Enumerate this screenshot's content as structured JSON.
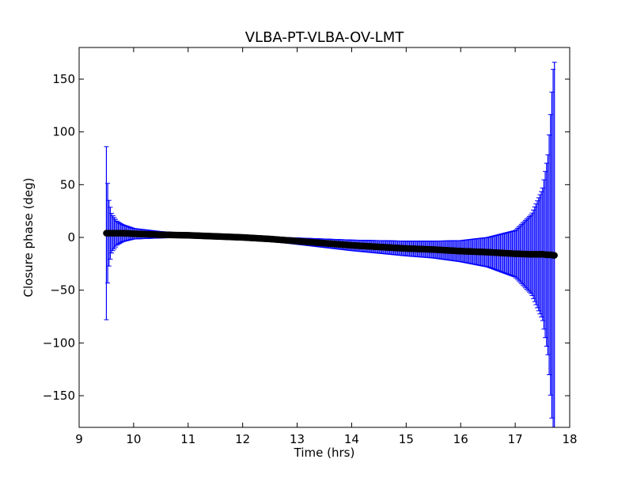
{
  "chart_data": {
    "type": "scatter",
    "title": "VLBA-PT-VLBA-OV-LMT",
    "xlabel": "Time (hrs)",
    "ylabel": "Closure phase (deg)",
    "xlim": [
      9,
      18
    ],
    "ylim": [
      -180,
      180
    ],
    "xticks": [
      9,
      10,
      11,
      12,
      13,
      14,
      15,
      16,
      17,
      18
    ],
    "xtick_labels": [
      "9",
      "10",
      "11",
      "12",
      "13",
      "14",
      "15",
      "16",
      "17",
      "18"
    ],
    "yticks": [
      -150,
      -100,
      -50,
      0,
      50,
      100,
      150
    ],
    "ytick_labels": [
      "−150",
      "−100",
      "−50",
      "0",
      "50",
      "100",
      "150"
    ],
    "grid": false,
    "legend": "none",
    "series": [
      {
        "marker": "circle",
        "color": "#000000",
        "errorbar_color": "#0000ff",
        "x": [
          9.5,
          9.52,
          9.55,
          9.6,
          9.7,
          9.8,
          10.0,
          10.5,
          11.0,
          11.5,
          12.0,
          12.5,
          13.0,
          13.5,
          14.0,
          14.5,
          15.0,
          15.5,
          16.0,
          16.5,
          17.0,
          17.3,
          17.5,
          17.6,
          17.65,
          17.7,
          17.72
        ],
        "y": [
          4,
          4,
          4,
          4,
          4,
          4,
          3.5,
          2.5,
          2,
          1,
          0,
          -1.5,
          -3.5,
          -5.5,
          -7.5,
          -9,
          -10.5,
          -11.5,
          -13,
          -14,
          -15.5,
          -16,
          -16,
          -16.5,
          -16.5,
          -17,
          -17
        ],
        "yerr": [
          82,
          50,
          30,
          18,
          11,
          8,
          5,
          3,
          2,
          2,
          2,
          2,
          3,
          4,
          5,
          6,
          7,
          8,
          10,
          14,
          22,
          38,
          62,
          95,
          135,
          180,
          183
        ]
      }
    ]
  }
}
